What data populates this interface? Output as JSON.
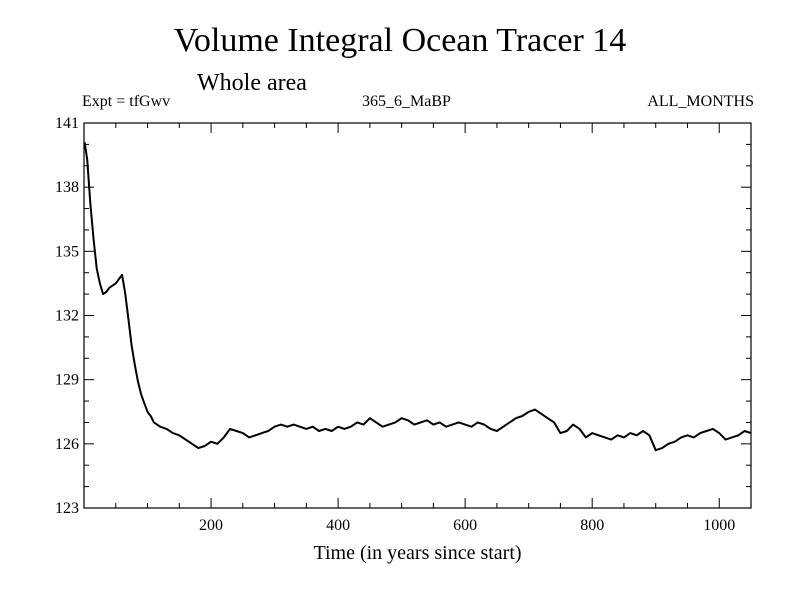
{
  "chart_data": {
    "type": "line",
    "title": "Volume Integral Ocean Tracer 14",
    "subtitle": "Whole area",
    "header_left": "Expt = tfGwv",
    "header_center": "365_6_MaBP",
    "header_right": "ALL_MONTHS",
    "xlabel": "Time (in years since start)",
    "ylabel": "",
    "xlim": [
      0,
      1050
    ],
    "ylim": [
      123,
      141
    ],
    "x_ticks": [
      200,
      400,
      600,
      800,
      1000
    ],
    "y_ticks": [
      123,
      126,
      129,
      132,
      135,
      138,
      141
    ],
    "grid": false,
    "series": [
      {
        "color": "#000000",
        "x": [
          1,
          5,
          10,
          15,
          20,
          25,
          30,
          35,
          40,
          45,
          50,
          55,
          60,
          65,
          70,
          75,
          80,
          85,
          90,
          95,
          100,
          105,
          110,
          120,
          130,
          140,
          150,
          160,
          170,
          180,
          190,
          200,
          210,
          220,
          230,
          240,
          250,
          260,
          270,
          280,
          290,
          300,
          310,
          320,
          330,
          340,
          350,
          360,
          370,
          380,
          390,
          400,
          410,
          420,
          430,
          440,
          450,
          460,
          470,
          480,
          490,
          500,
          510,
          520,
          530,
          540,
          550,
          560,
          570,
          580,
          590,
          600,
          610,
          620,
          630,
          640,
          650,
          660,
          670,
          680,
          690,
          700,
          710,
          720,
          730,
          740,
          750,
          760,
          770,
          780,
          790,
          800,
          810,
          820,
          830,
          840,
          850,
          860,
          870,
          880,
          890,
          900,
          910,
          920,
          930,
          940,
          950,
          960,
          970,
          980,
          990,
          1000,
          1010,
          1020,
          1030,
          1040,
          1050
        ],
        "values": [
          140.1,
          139.3,
          137.2,
          135.6,
          134.2,
          133.5,
          133.0,
          133.1,
          133.3,
          133.4,
          133.5,
          133.7,
          133.9,
          133.0,
          131.8,
          130.6,
          129.7,
          128.9,
          128.3,
          127.9,
          127.5,
          127.3,
          127.0,
          126.8,
          126.7,
          126.5,
          126.4,
          126.2,
          126.0,
          125.8,
          125.9,
          126.1,
          126.0,
          126.3,
          126.7,
          126.6,
          126.5,
          126.3,
          126.4,
          126.5,
          126.6,
          126.8,
          126.9,
          126.8,
          126.9,
          126.8,
          126.7,
          126.8,
          126.6,
          126.7,
          126.6,
          126.8,
          126.7,
          126.8,
          127.0,
          126.9,
          127.2,
          127.0,
          126.8,
          126.9,
          127.0,
          127.2,
          127.1,
          126.9,
          127.0,
          127.1,
          126.9,
          127.0,
          126.8,
          126.9,
          127.0,
          126.9,
          126.8,
          127.0,
          126.9,
          126.7,
          126.6,
          126.8,
          127.0,
          127.2,
          127.3,
          127.5,
          127.6,
          127.4,
          127.2,
          127.0,
          126.5,
          126.6,
          126.9,
          126.7,
          126.3,
          126.5,
          126.4,
          126.3,
          126.2,
          126.4,
          126.3,
          126.5,
          126.4,
          126.6,
          126.4,
          125.7,
          125.8,
          126.0,
          126.1,
          126.3,
          126.4,
          126.3,
          126.5,
          126.6,
          126.7,
          126.5,
          126.2,
          126.3,
          126.4,
          126.6,
          126.5
        ]
      }
    ]
  }
}
